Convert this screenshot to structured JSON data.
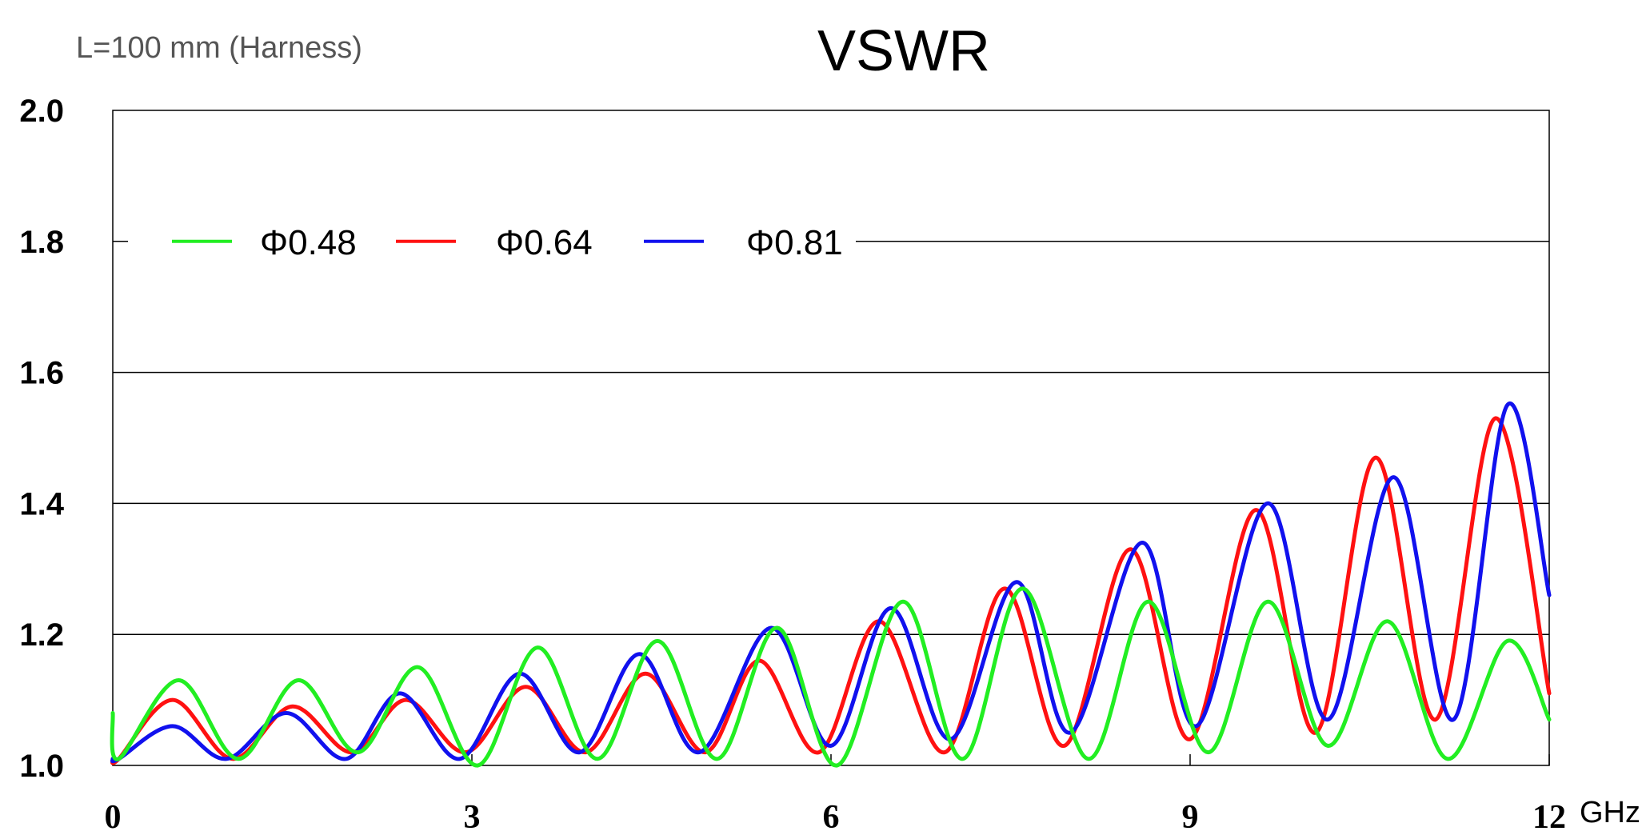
{
  "chart_data": {
    "type": "line",
    "title": "VSWR",
    "subtitle": "L=100 mm (Harness)",
    "xlabel": "GHz",
    "ylabel": "",
    "xlim": [
      0,
      12
    ],
    "ylim": [
      1.0,
      2.0
    ],
    "xticks": [
      0,
      3,
      6,
      9,
      12
    ],
    "xtick_labels": [
      "0",
      "3",
      "6",
      "9",
      "12"
    ],
    "yticks": [
      1.0,
      1.2,
      1.4,
      1.6,
      1.8,
      2.0
    ],
    "ytick_labels": [
      "1.0",
      "1.2",
      "1.4",
      "1.6",
      "1.8",
      "2.0"
    ],
    "grid": "horizontal",
    "legend_position": "top-left",
    "series": [
      {
        "name": "Φ0.48",
        "color": "#22ee22",
        "x": [
          0,
          0.05,
          0.55,
          1.05,
          1.55,
          2.05,
          2.55,
          3.05,
          3.55,
          4.05,
          4.55,
          5.05,
          5.55,
          6.05,
          6.6,
          7.1,
          7.6,
          8.15,
          8.65,
          9.15,
          9.65,
          10.15,
          10.65,
          11.15,
          11.65,
          12.0
        ],
        "y": [
          1.08,
          1.01,
          1.13,
          1.01,
          1.13,
          1.02,
          1.15,
          1.0,
          1.18,
          1.01,
          1.19,
          1.01,
          1.21,
          1.0,
          1.25,
          1.01,
          1.27,
          1.01,
          1.25,
          1.02,
          1.25,
          1.03,
          1.22,
          1.01,
          1.19,
          1.07
        ]
      },
      {
        "name": "Φ0.64",
        "color": "#ff1111",
        "x": [
          0,
          0.05,
          0.5,
          1.0,
          1.5,
          2.0,
          2.45,
          2.95,
          3.45,
          3.95,
          4.45,
          4.95,
          5.4,
          5.9,
          6.4,
          6.95,
          7.45,
          7.95,
          8.5,
          9.0,
          9.55,
          10.05,
          10.55,
          11.05,
          11.55,
          12.0
        ],
        "y": [
          1.01,
          1.01,
          1.1,
          1.01,
          1.09,
          1.02,
          1.1,
          1.02,
          1.12,
          1.02,
          1.14,
          1.02,
          1.16,
          1.02,
          1.22,
          1.02,
          1.27,
          1.03,
          1.33,
          1.04,
          1.39,
          1.05,
          1.47,
          1.07,
          1.53,
          1.11
        ]
      },
      {
        "name": "Φ0.81",
        "color": "#1111ee",
        "x": [
          0,
          0.05,
          0.5,
          0.95,
          1.45,
          1.95,
          2.4,
          2.9,
          3.4,
          3.9,
          4.4,
          4.9,
          5.5,
          6.0,
          6.5,
          7.0,
          7.55,
          8.0,
          8.6,
          9.05,
          9.65,
          10.15,
          10.7,
          11.2,
          11.65,
          12.0
        ],
        "y": [
          1.01,
          1.01,
          1.06,
          1.01,
          1.08,
          1.01,
          1.11,
          1.01,
          1.14,
          1.02,
          1.17,
          1.02,
          1.21,
          1.03,
          1.24,
          1.04,
          1.28,
          1.05,
          1.34,
          1.06,
          1.4,
          1.07,
          1.44,
          1.07,
          1.55,
          1.26
        ]
      }
    ]
  }
}
